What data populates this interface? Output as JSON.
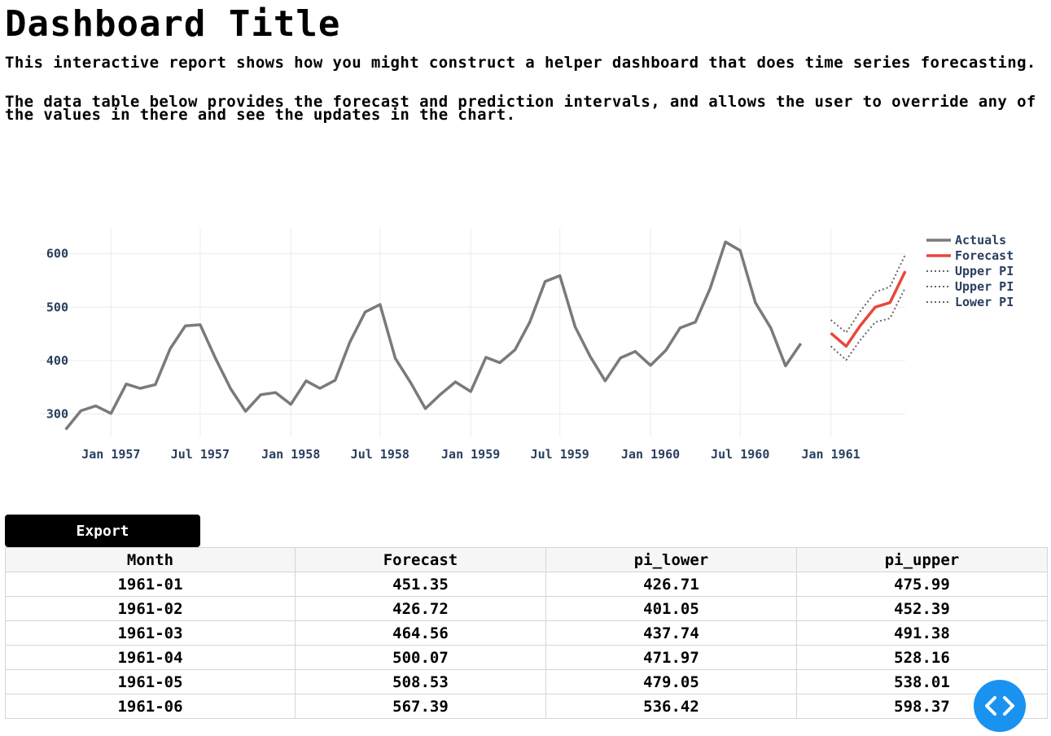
{
  "page": {
    "title": "Dashboard Title",
    "description_1": "This interactive report shows how you might construct a helper dashboard that does time series forecasting.",
    "description_2": "The data table below provides the forecast and prediction intervals, and allows the user to override any of the values in there and see the updates in the chart."
  },
  "chart_data": {
    "type": "line",
    "x_tick_labels": [
      "Jan 1957",
      "Jul 1957",
      "Jan 1958",
      "Jul 1958",
      "Jan 1959",
      "Jul 1959",
      "Jan 1960",
      "Jul 1960",
      "Jan 1961"
    ],
    "y_ticks": [
      300,
      400,
      500,
      600
    ],
    "ylim": [
      258,
      630
    ],
    "grid": true,
    "legend_position": "right",
    "series": [
      {
        "name": "Actuals",
        "color": "#7a7a7a",
        "style": "solid",
        "x": [
          "1956-10",
          "1956-11",
          "1956-12",
          "1957-01",
          "1957-02",
          "1957-03",
          "1957-04",
          "1957-05",
          "1957-06",
          "1957-07",
          "1957-08",
          "1957-09",
          "1957-10",
          "1957-11",
          "1957-12",
          "1958-01",
          "1958-02",
          "1958-03",
          "1958-04",
          "1958-05",
          "1958-06",
          "1958-07",
          "1958-08",
          "1958-09",
          "1958-10",
          "1958-11",
          "1958-12",
          "1959-01",
          "1959-02",
          "1959-03",
          "1959-04",
          "1959-05",
          "1959-06",
          "1959-07",
          "1959-08",
          "1959-09",
          "1959-10",
          "1959-11",
          "1959-12",
          "1960-01",
          "1960-02",
          "1960-03",
          "1960-04",
          "1960-05",
          "1960-06",
          "1960-07",
          "1960-08",
          "1960-09",
          "1960-10",
          "1960-11",
          "1960-12"
        ],
        "values": [
          271,
          306,
          315,
          301,
          356,
          348,
          355,
          422,
          465,
          467,
          404,
          347,
          305,
          336,
          340,
          318,
          362,
          348,
          363,
          435,
          491,
          505,
          404,
          359,
          310,
          337,
          360,
          342,
          406,
          396,
          420,
          472,
          548,
          559,
          463,
          407,
          362,
          405,
          417,
          391,
          419,
          461,
          472,
          535,
          622,
          606,
          508,
          461,
          390,
          432,
          null
        ]
      },
      {
        "name": "Forecast",
        "color": "#e8473c",
        "style": "solid",
        "x": [
          "1961-01",
          "1961-02",
          "1961-03",
          "1961-04",
          "1961-05",
          "1961-06"
        ],
        "values": [
          451.35,
          426.72,
          464.56,
          500.07,
          508.53,
          567.39
        ]
      },
      {
        "name": "Upper PI",
        "color": "#666666",
        "style": "dotted",
        "x": [
          "1961-01",
          "1961-02",
          "1961-03",
          "1961-04",
          "1961-05",
          "1961-06"
        ],
        "values": [
          475.99,
          452.39,
          491.38,
          528.16,
          538.01,
          598.37
        ]
      },
      {
        "name": "Upper PI",
        "color": "#666666",
        "style": "dotted",
        "legend_only": true,
        "x": [],
        "values": []
      },
      {
        "name": "Lower PI",
        "color": "#666666",
        "style": "dotted",
        "x": [
          "1961-01",
          "1961-02",
          "1961-03",
          "1961-04",
          "1961-05",
          "1961-06"
        ],
        "values": [
          426.71,
          401.05,
          437.74,
          471.97,
          479.05,
          536.42
        ]
      }
    ],
    "x_domain_start": "1956-09-20",
    "x_domain_end": "1961-06-01"
  },
  "toolbar": {
    "export_label": "Export"
  },
  "table": {
    "headers": [
      "Month",
      "Forecast",
      "pi_lower",
      "pi_upper"
    ],
    "rows": [
      [
        "1961-01",
        "451.35",
        "426.71",
        "475.99"
      ],
      [
        "1961-02",
        "426.72",
        "401.05",
        "452.39"
      ],
      [
        "1961-03",
        "464.56",
        "437.74",
        "491.38"
      ],
      [
        "1961-04",
        "500.07",
        "471.97",
        "528.16"
      ],
      [
        "1961-05",
        "508.53",
        "479.05",
        "538.01"
      ],
      [
        "1961-06",
        "567.39",
        "536.42",
        "598.37"
      ]
    ]
  },
  "fab": {
    "icon": "code-icon",
    "color": "#1a93f0"
  }
}
